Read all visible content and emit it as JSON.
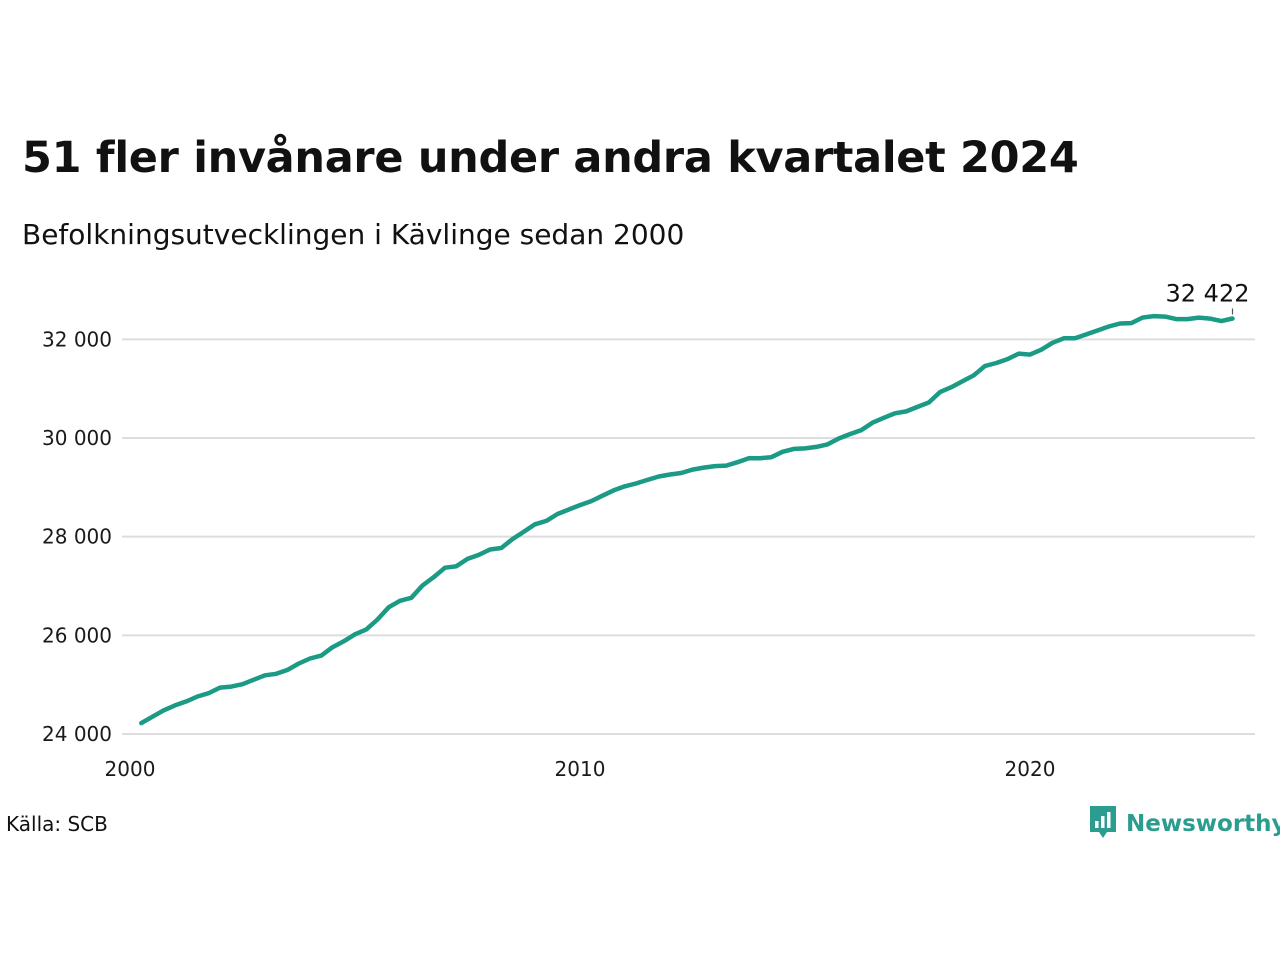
{
  "header": {
    "title": "51 fler invånare under andra kvartalet 2024",
    "subtitle": "Befolkningsutvecklingen i Kävlinge sedan 2000"
  },
  "footer": {
    "source": "Källa: SCB",
    "brand": "Newsworthy",
    "brand_icon": "newsworthy-chart-icon"
  },
  "colors": {
    "line": "#1b9a85",
    "grid": "#dddddd",
    "brand": "#2a9d8f"
  },
  "chart_data": {
    "type": "line",
    "title": "51 fler invånare under andra kvartalet 2024",
    "subtitle": "Befolkningsutvecklingen i Kävlinge sedan 2000",
    "xlabel": "",
    "ylabel": "",
    "xlim": [
      2000,
      2025
    ],
    "ylim": [
      24000,
      33000
    ],
    "x_ticks": [
      2000,
      2010,
      2020
    ],
    "x_tick_labels": [
      "2000",
      "2010",
      "2020"
    ],
    "y_ticks": [
      24000,
      26000,
      28000,
      30000,
      32000
    ],
    "y_tick_labels": [
      "24 000",
      "26 000",
      "28 000",
      "30 000",
      "32 000"
    ],
    "grid": "horizontal",
    "legend": "none",
    "end_label": "32 422",
    "series": [
      {
        "x": [
          2000.25,
          2000.5,
          2000.75,
          2001.0,
          2001.25,
          2001.5,
          2001.75,
          2002.0,
          2002.25,
          2002.5,
          2002.75,
          2003.0,
          2003.25,
          2003.5,
          2003.75,
          2004.0,
          2004.25,
          2004.5,
          2004.75,
          2005.0,
          2005.25,
          2005.5,
          2005.75,
          2006.0,
          2006.25,
          2006.5,
          2006.75,
          2007.0,
          2007.25,
          2007.5,
          2007.75,
          2008.0,
          2008.25,
          2008.5,
          2008.75,
          2009.0,
          2009.25,
          2009.5,
          2009.75,
          2010.0,
          2010.25,
          2010.5,
          2010.75,
          2011.0,
          2011.25,
          2011.5,
          2011.75,
          2012.0,
          2012.25,
          2012.5,
          2012.75,
          2013.0,
          2013.25,
          2013.5,
          2013.75,
          2014.0,
          2014.25,
          2014.5,
          2014.75,
          2015.0,
          2015.25,
          2015.5,
          2015.75,
          2016.0,
          2016.25,
          2016.5,
          2016.75,
          2017.0,
          2017.25,
          2017.5,
          2017.75,
          2018.0,
          2018.25,
          2018.5,
          2018.75,
          2019.0,
          2019.25,
          2019.5,
          2019.75,
          2020.0,
          2020.25,
          2020.5,
          2020.75,
          2021.0,
          2021.25,
          2021.5,
          2021.75,
          2022.0,
          2022.25,
          2022.5,
          2022.75,
          2023.0,
          2023.25,
          2023.5,
          2023.75,
          2024.0,
          2024.25,
          2024.5
        ],
        "values": [
          24220,
          24350,
          24480,
          24580,
          24660,
          24760,
          24830,
          24940,
          24960,
          25010,
          25100,
          25190,
          25220,
          25300,
          25430,
          25530,
          25590,
          25760,
          25880,
          26020,
          26120,
          26320,
          26570,
          26700,
          26760,
          27010,
          27180,
          27370,
          27400,
          27550,
          27630,
          27740,
          27770,
          27950,
          28100,
          28250,
          28320,
          28460,
          28550,
          28640,
          28720,
          28830,
          28940,
          29020,
          29080,
          29150,
          29220,
          29260,
          29290,
          29360,
          29400,
          29430,
          29440,
          29510,
          29590,
          29590,
          29610,
          29720,
          29780,
          29790,
          29820,
          29870,
          29990,
          30080,
          30160,
          30310,
          30410,
          30500,
          30540,
          30630,
          30720,
          30930,
          31030,
          31150,
          31270,
          31460,
          31520,
          31600,
          31710,
          31690,
          31790,
          31930,
          32020,
          32020,
          32100,
          32180,
          32260,
          32320,
          32330,
          32440,
          32470,
          32460,
          32410,
          32410,
          32440,
          32420,
          32370,
          32422
        ]
      }
    ]
  }
}
